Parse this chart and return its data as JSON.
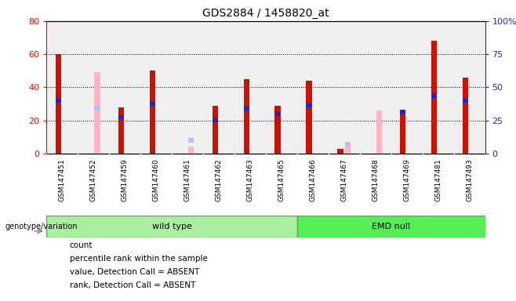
{
  "title": "GDS2884 / 1458820_at",
  "samples": [
    "GSM147451",
    "GSM147452",
    "GSM147459",
    "GSM147460",
    "GSM147461",
    "GSM147462",
    "GSM147463",
    "GSM147465",
    "GSM147466",
    "GSM147467",
    "GSM147468",
    "GSM147469",
    "GSM147481",
    "GSM147493"
  ],
  "count": [
    60,
    0,
    28,
    50,
    0,
    29,
    45,
    29,
    44,
    3,
    0,
    25,
    68,
    46
  ],
  "percentile": [
    32,
    0,
    22,
    30,
    0,
    20,
    27,
    24,
    29,
    0,
    0,
    25,
    35,
    32
  ],
  "value_absent": [
    0,
    49,
    0,
    0,
    4,
    0,
    0,
    0,
    0,
    5,
    26,
    0,
    0,
    0
  ],
  "rank_absent": [
    0,
    27,
    0,
    0,
    8,
    0,
    0,
    0,
    0,
    6,
    0,
    0,
    0,
    0
  ],
  "ylim_left": [
    0,
    80
  ],
  "ylim_right": [
    0,
    100
  ],
  "yticks_left": [
    0,
    20,
    40,
    60,
    80
  ],
  "yticks_right": [
    0,
    25,
    50,
    75,
    100
  ],
  "group_labels": [
    "wild type",
    "EMD null"
  ],
  "color_count": "#CC1100",
  "color_percentile": "#2222CC",
  "color_value_absent": "#FFB6C1",
  "color_rank_absent": "#BBBBEE",
  "bg_plot": "#F0F0F0",
  "bg_labels": "#C8C8C8"
}
